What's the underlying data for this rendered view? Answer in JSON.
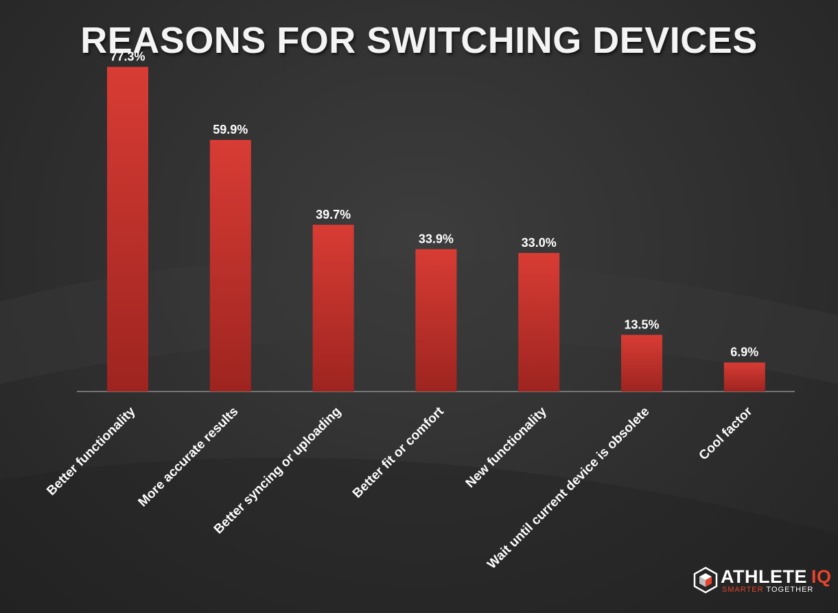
{
  "title": "REASONS FOR SWITCHING DEVICES",
  "chart_data": {
    "type": "bar",
    "title": "REASONS FOR SWITCHING DEVICES",
    "categories": [
      "Better functionality",
      "More accurate results",
      "Better syncing or uploading",
      "Better fit or comfort",
      "New functionality",
      "Wait until current device is obsolete",
      "Cool factor"
    ],
    "values": [
      77.3,
      59.9,
      39.7,
      33.9,
      33.0,
      13.5,
      6.9
    ],
    "data_labels": [
      "77.3%",
      "59.9%",
      "39.7%",
      "33.9%",
      "33.0%",
      "13.5%",
      "6.9%"
    ],
    "value_suffix": "%",
    "ylim": [
      0,
      80
    ],
    "grid": false,
    "legend": "none",
    "xlabel": "",
    "ylabel": "",
    "bar_color": "#d33a32",
    "bar_color_dark": "#9e2420"
  },
  "logo": {
    "brand": "ATHLETE",
    "brand_accent": "IQ",
    "tagline_accent": "SMARTER",
    "tagline_rest": " TOGETHER",
    "icon": "hexagon-cube-icon",
    "accent_color": "#e8432e"
  }
}
